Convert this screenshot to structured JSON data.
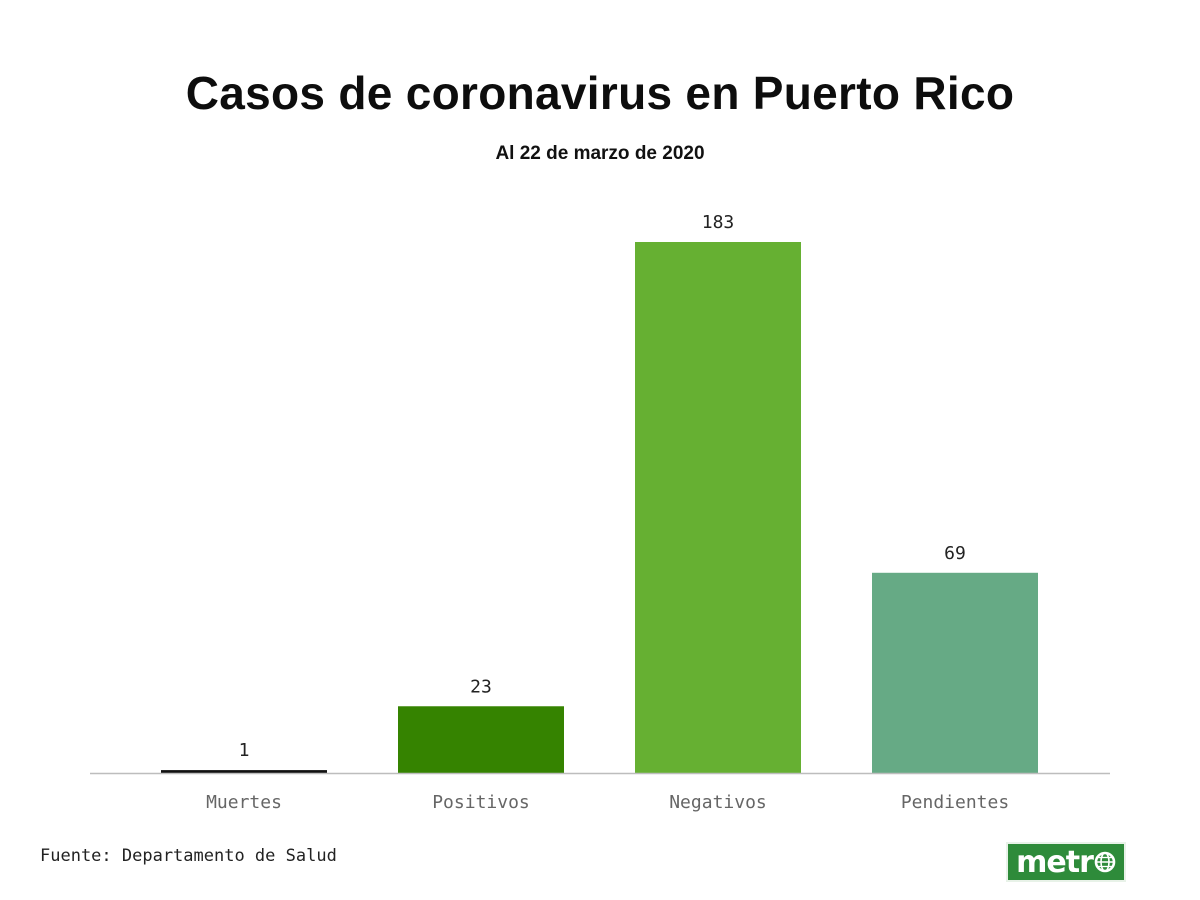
{
  "header": {
    "title": "Casos de coronavirus en Puerto Rico",
    "subtitle": "Al 22 de marzo de 2020"
  },
  "footer": {
    "source": "Fuente: Departamento de Salud",
    "logo_text": "metr"
  },
  "colors": {
    "brand": "#2e8b3a",
    "axis": "#bdbdbd",
    "tick_label": "#666666",
    "value_label": "#222222"
  },
  "chart_data": {
    "type": "bar",
    "title": "Casos de coronavirus en Puerto Rico",
    "subtitle": "Al 22 de marzo de 2020",
    "categories": [
      "Muertes",
      "Positivos",
      "Negativos",
      "Pendientes"
    ],
    "values": [
      1,
      23,
      183,
      69
    ],
    "colors": [
      "#111111",
      "#358300",
      "#66b032",
      "#66aa85"
    ],
    "ylim": [
      0,
      183
    ],
    "grid": false,
    "legend": "none"
  }
}
